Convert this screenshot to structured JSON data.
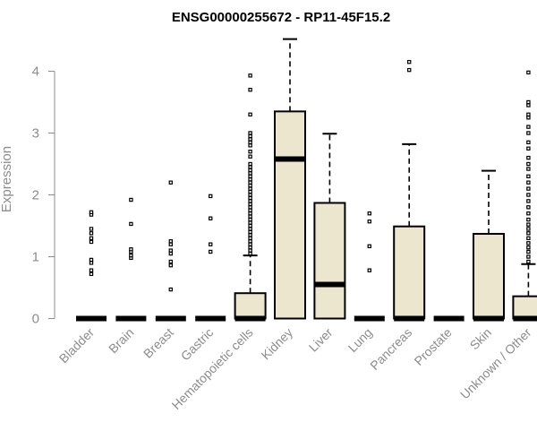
{
  "chart_data": {
    "type": "box",
    "title": "ENSG00000255672 - RP11-45F15.2",
    "xlabel": "",
    "ylabel": "Expression",
    "ylim": [
      0,
      4.6
    ],
    "yticks": [
      0,
      1,
      2,
      3,
      4
    ],
    "grid": false,
    "categories": [
      "Bladder",
      "Brain",
      "Breast",
      "Gastric",
      "Hematopoietic cells",
      "Kidney",
      "Liver",
      "Lung",
      "Pancreas",
      "Prostate",
      "Skin",
      "Unknown / Other"
    ],
    "boxes": [
      {
        "category": "Bladder",
        "min": 0,
        "q1": 0,
        "median": 0,
        "q3": 0,
        "max": 0,
        "outliers": [
          0.72,
          0.78,
          0.9,
          0.95,
          1.24,
          1.3,
          1.38,
          1.45,
          1.68,
          1.72
        ]
      },
      {
        "category": "Brain",
        "min": 0,
        "q1": 0,
        "median": 0,
        "q3": 0,
        "max": 0,
        "outliers": [
          0.98,
          1.02,
          1.08,
          1.12,
          1.53,
          1.92
        ]
      },
      {
        "category": "Breast",
        "min": 0,
        "q1": 0,
        "median": 0,
        "q3": 0,
        "max": 0,
        "outliers": [
          0.47,
          0.86,
          0.92,
          1.05,
          1.1,
          1.2,
          1.25,
          2.2
        ]
      },
      {
        "category": "Gastric",
        "min": 0,
        "q1": 0,
        "median": 0,
        "q3": 0,
        "max": 0,
        "outliers": [
          1.08,
          1.2,
          1.62,
          1.98
        ]
      },
      {
        "category": "Hematopoietic cells",
        "min": 0,
        "q1": 0,
        "median": 0,
        "q3": 0.41,
        "max": 1.02,
        "outliers": [
          1.05,
          1.1,
          1.15,
          1.2,
          1.25,
          1.3,
          1.35,
          1.4,
          1.45,
          1.5,
          1.55,
          1.6,
          1.65,
          1.7,
          1.75,
          1.8,
          1.85,
          1.9,
          1.95,
          2.0,
          2.05,
          2.1,
          2.15,
          2.2,
          2.25,
          2.3,
          2.35,
          2.4,
          2.45,
          2.5,
          2.62,
          2.7,
          2.8,
          2.85,
          2.9,
          2.95,
          3.0,
          3.3,
          3.7,
          3.93
        ]
      },
      {
        "category": "Kidney",
        "min": 0,
        "q1": 0,
        "median": 2.58,
        "q3": 3.35,
        "max": 4.52,
        "outliers": []
      },
      {
        "category": "Liver",
        "min": 0,
        "q1": 0,
        "median": 0.55,
        "q3": 1.87,
        "max": 2.99,
        "outliers": []
      },
      {
        "category": "Lung",
        "min": 0,
        "q1": 0,
        "median": 0,
        "q3": 0,
        "max": 0,
        "outliers": [
          0.78,
          1.17,
          1.57,
          1.7
        ]
      },
      {
        "category": "Pancreas",
        "min": 0,
        "q1": 0,
        "median": 0,
        "q3": 1.49,
        "max": 2.82,
        "outliers": [
          4.02,
          4.15
        ]
      },
      {
        "category": "Prostate",
        "min": 0,
        "q1": 0,
        "median": 0,
        "q3": 0,
        "max": 0,
        "outliers": []
      },
      {
        "category": "Skin",
        "min": 0,
        "q1": 0,
        "median": 0,
        "q3": 1.37,
        "max": 2.39,
        "outliers": []
      },
      {
        "category": "Unknown / Other",
        "min": 0,
        "q1": 0,
        "median": 0,
        "q3": 0.36,
        "max": 0.88,
        "outliers": [
          0.92,
          1.0,
          1.08,
          1.15,
          1.22,
          1.3,
          1.38,
          1.45,
          1.52,
          1.6,
          1.7,
          1.8,
          1.9,
          2.0,
          2.1,
          2.2,
          2.3,
          2.42,
          2.5,
          2.6,
          2.75,
          2.85,
          3.0,
          3.1,
          3.25,
          3.3,
          3.45,
          3.5,
          3.98
        ]
      }
    ],
    "colors": {
      "box_fill": "#ede6cf",
      "stroke": "#000000",
      "axis_text": "#8c8c8c",
      "title": "#000000"
    }
  }
}
